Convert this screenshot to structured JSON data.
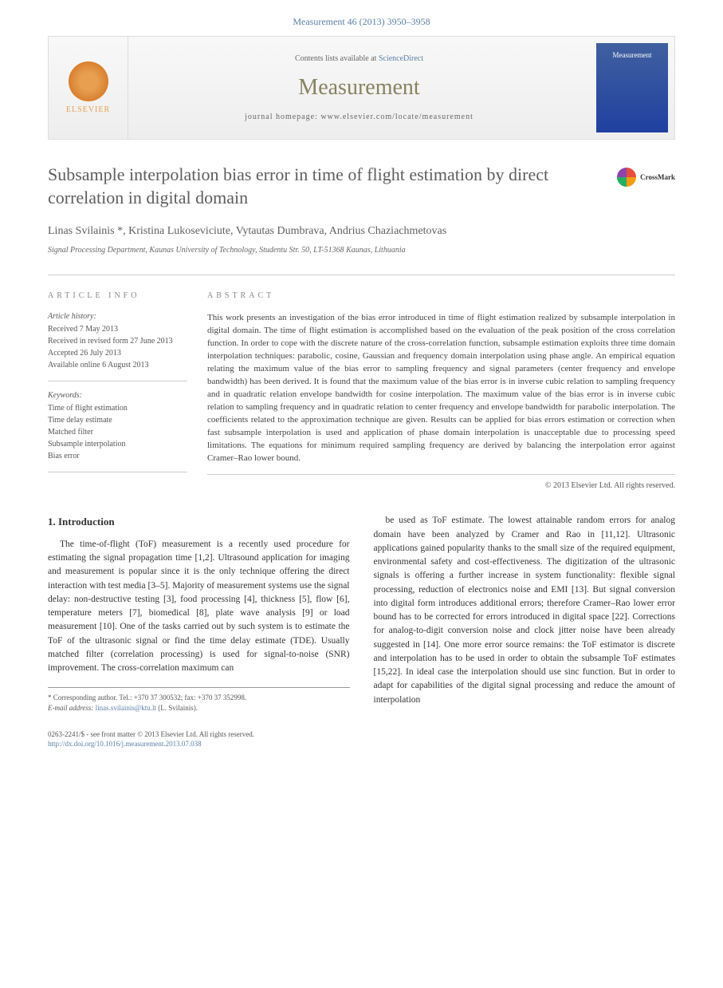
{
  "header": {
    "citation": "Measurement 46 (2013) 3950–3958"
  },
  "banner": {
    "contents_prefix": "Contents lists available at ",
    "contents_link": "ScienceDirect",
    "journal_name": "Measurement",
    "homepage_prefix": "journal homepage: ",
    "homepage_url": "www.elsevier.com/locate/measurement",
    "publisher": "ELSEVIER",
    "cover_label": "Measurement"
  },
  "article": {
    "title": "Subsample interpolation bias error in time of flight estimation by direct correlation in digital domain",
    "crossmark": "CrossMark",
    "authors": "Linas Svilainis *, Kristina Lukoseviciute, Vytautas Dumbrava, Andrius Chaziachmetovas",
    "affiliation": "Signal Processing Department, Kaunas University of Technology, Studentu Str. 50, LT-51368 Kaunas, Lithuania"
  },
  "info": {
    "heading": "ARTICLE INFO",
    "history_label": "Article history:",
    "received": "Received 7 May 2013",
    "revised": "Received in revised form 27 June 2013",
    "accepted": "Accepted 26 July 2013",
    "online": "Available online 6 August 2013",
    "keywords_label": "Keywords:",
    "kw1": "Time of flight estimation",
    "kw2": "Time delay estimate",
    "kw3": "Matched filter",
    "kw4": "Subsample interpolation",
    "kw5": "Bias error"
  },
  "abstract": {
    "heading": "ABSTRACT",
    "text": "This work presents an investigation of the bias error introduced in time of flight estimation realized by subsample interpolation in digital domain. The time of flight estimation is accomplished based on the evaluation of the peak position of the cross correlation function. In order to cope with the discrete nature of the cross-correlation function, subsample estimation exploits three time domain interpolation techniques: parabolic, cosine, Gaussian and frequency domain interpolation using phase angle. An empirical equation relating the maximum value of the bias error to sampling frequency and signal parameters (center frequency and envelope bandwidth) has been derived. It is found that the maximum value of the bias error is in inverse cubic relation to sampling frequency and in quadratic relation envelope bandwidth for cosine interpolation. The maximum value of the bias error is in inverse cubic relation to sampling frequency and in quadratic relation to center frequency and envelope bandwidth for parabolic interpolation. The coefficients related to the approximation technique are given. Results can be applied for bias errors estimation or correction when fast subsample interpolation is used and application of phase domain interpolation is unacceptable due to processing speed limitations. The equations for minimum required sampling frequency are derived by balancing the interpolation error against Cramer–Rao lower bound.",
    "copyright": "© 2013 Elsevier Ltd. All rights reserved."
  },
  "body": {
    "section_heading": "1. Introduction",
    "col1": "The time-of-flight (ToF) measurement is a recently used procedure for estimating the signal propagation time [1,2]. Ultrasound application for imaging and measurement is popular since it is the only technique offering the direct interaction with test media [3–5]. Majority of measurement systems use the signal delay: non-destructive testing [3], food processing [4], thickness [5], flow [6], temperature meters [7], biomedical [8], plate wave analysis [9] or load measurement [10]. One of the tasks carried out by such system is to estimate the ToF of the ultrasonic signal or find the time delay estimate (TDE). Usually matched filter (correlation processing) is used for signal-to-noise (SNR) improvement. The cross-correlation maximum can",
    "col2": "be used as ToF estimate. The lowest attainable random errors for analog domain have been analyzed by Cramer and Rao in [11,12]. Ultrasonic applications gained popularity thanks to the small size of the required equipment, environmental safety and cost-effectiveness. The digitization of the ultrasonic signals is offering a further increase in system functionality: flexible signal processing, reduction of electronics noise and EMI [13]. But signal conversion into digital form introduces additional errors; therefore Cramer–Rao lower error bound has to be corrected for errors introduced in digital space [22]. Corrections for analog-to-digit conversion noise and clock jitter noise have been already suggested in [14]. One more error source remains: the ToF estimator is discrete and interpolation has to be used in order to obtain the subsample ToF estimates [15,22]. In ideal case the interpolation should use sinc function. But in order to adapt for capabilities of the digital signal processing and reduce the amount of interpolation"
  },
  "footnote": {
    "corresponding": "* Corresponding author. Tel.: +370 37 300532; fax: +370 37 352998.",
    "email_label": "E-mail address: ",
    "email": "linas.svilainis@ktu.lt",
    "email_suffix": " (L. Svilainis)."
  },
  "footer": {
    "issn": "0263-2241/$ - see front matter © 2013 Elsevier Ltd. All rights reserved.",
    "doi_label": "http://dx.doi.org/",
    "doi": "10.1016/j.measurement.2013.07.038"
  }
}
